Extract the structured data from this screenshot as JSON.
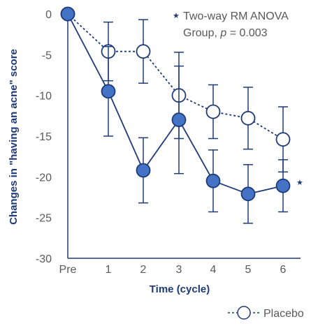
{
  "chart_data": {
    "type": "line",
    "categories": [
      "Pre",
      "1",
      "2",
      "3",
      "4",
      "5",
      "6"
    ],
    "xlabel": "Time (cycle)",
    "ylabel": "Changes in \"having an acne\" score",
    "ylim": [
      -30,
      0
    ],
    "yticks": [
      "0",
      "-5",
      "-10",
      "-15",
      "-20",
      "-25",
      "-30"
    ],
    "series": [
      {
        "name": "",
        "style": "solid-filled",
        "values": [
          0,
          -9.5,
          -19.2,
          -13.0,
          -20.5,
          -22.1,
          -21.1
        ],
        "err": [
          0,
          5.5,
          4.0,
          6.6,
          3.8,
          3.6,
          3.2
        ]
      },
      {
        "name": "Placebo",
        "style": "dashed-open",
        "values": [
          0,
          -4.6,
          -4.6,
          -10.0,
          -12.0,
          -12.8,
          -15.4
        ],
        "err": [
          0,
          3.6,
          3.9,
          5.3,
          3.3,
          3.8,
          4.0
        ]
      }
    ],
    "annotation": {
      "star": "★",
      "line1": "Two-way RM ANOVA",
      "line2_prefix": "Group, ",
      "line2_p": "p",
      "line2_suffix": " = 0.003"
    },
    "significance_marker": "★",
    "colors": {
      "active": "#1f3a78",
      "active_fill": "#4472c4",
      "axis": "#1f3a78",
      "text": "#595959"
    }
  }
}
